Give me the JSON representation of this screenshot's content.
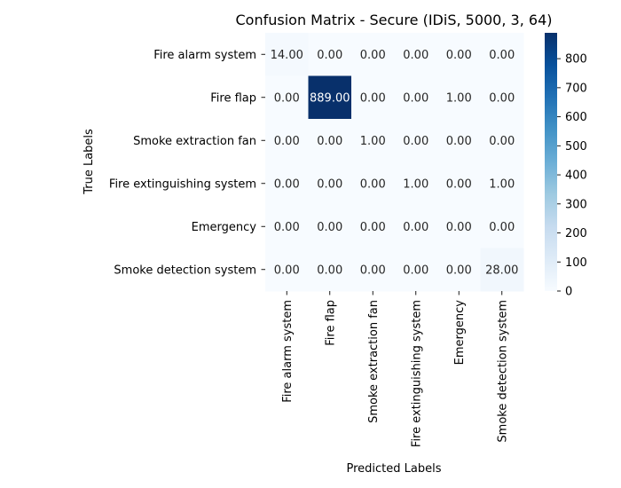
{
  "chart_data": {
    "type": "heatmap",
    "title": "Confusion Matrix - Secure (IDiS, 5000, 3, 64)",
    "xlabel": "Predicted Labels",
    "ylabel": "True Labels",
    "row_labels": [
      "Fire alarm system",
      "Fire flap",
      "Smoke extraction fan",
      "Fire extinguishing system",
      "Emergency",
      "Smoke detection system"
    ],
    "col_labels": [
      "Fire alarm system",
      "Fire flap",
      "Smoke extraction fan",
      "Fire extinguishing system",
      "Emergency",
      "Smoke detection system"
    ],
    "values": [
      [
        14,
        0,
        0,
        0,
        0,
        0
      ],
      [
        0,
        889,
        0,
        0,
        1,
        0
      ],
      [
        0,
        0,
        1,
        0,
        0,
        0
      ],
      [
        0,
        0,
        0,
        1,
        0,
        1
      ],
      [
        0,
        0,
        0,
        0,
        0,
        0
      ],
      [
        0,
        0,
        0,
        0,
        0,
        28
      ]
    ],
    "cell_labels": [
      [
        "14.00",
        "0.00",
        "0.00",
        "0.00",
        "0.00",
        "0.00"
      ],
      [
        "0.00",
        "889.00",
        "0.00",
        "0.00",
        "1.00",
        "0.00"
      ],
      [
        "0.00",
        "0.00",
        "1.00",
        "0.00",
        "0.00",
        "0.00"
      ],
      [
        "0.00",
        "0.00",
        "0.00",
        "1.00",
        "0.00",
        "1.00"
      ],
      [
        "0.00",
        "0.00",
        "0.00",
        "0.00",
        "0.00",
        "0.00"
      ],
      [
        "0.00",
        "0.00",
        "0.00",
        "0.00",
        "0.00",
        "28.00"
      ]
    ],
    "colormap": "Blues",
    "colormap_stops": [
      "#f7fbff",
      "#deebf7",
      "#c6dbef",
      "#9ecae1",
      "#6baed6",
      "#4292c6",
      "#2171b5",
      "#08519c",
      "#08306b"
    ],
    "vmin": 0,
    "vmax": 889,
    "colorbar_ticks": [
      "0",
      "100",
      "200",
      "300",
      "400",
      "500",
      "600",
      "700",
      "800"
    ],
    "colorbar_tick_values": [
      0,
      100,
      200,
      300,
      400,
      500,
      600,
      700,
      800
    ],
    "grid": false
  }
}
